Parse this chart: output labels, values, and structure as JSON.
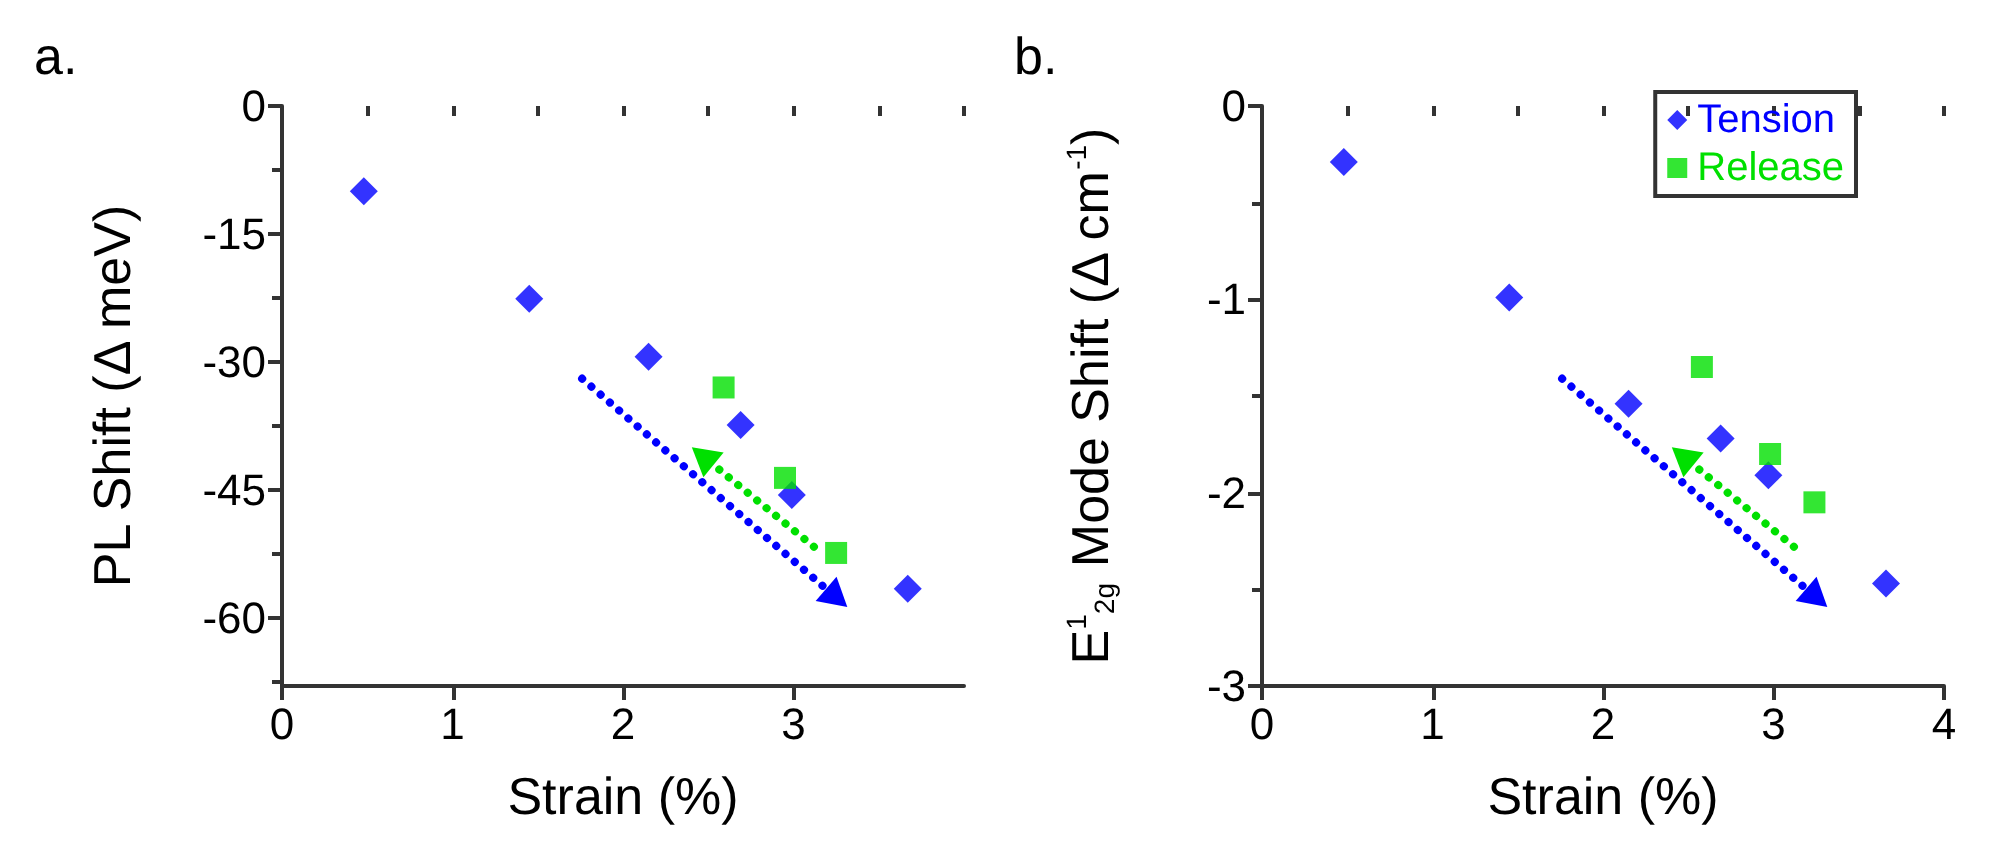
{
  "chart_data": [
    {
      "type": "scatter",
      "title": "a.",
      "xlabel": "Strain (%)",
      "ylabel": "PL Shift (Δ meV)",
      "xlim": [
        0,
        4
      ],
      "xticks": [
        0,
        1,
        2,
        3
      ],
      "ylim": [
        -68,
        0
      ],
      "yticks": [
        0,
        -15,
        -30,
        -45,
        -60
      ],
      "grid": false,
      "legend": false,
      "series": [
        {
          "color": "#0000ff",
          "marker": "diamond",
          "x": [
            0.48,
            1.45,
            2.15,
            2.69,
            2.99,
            3.67
          ],
          "values": [
            -10.0,
            -22.6,
            -29.4,
            -37.4,
            -45.6,
            -56.6
          ]
        },
        {
          "color": "#00e000",
          "marker": "square",
          "x": [
            2.59,
            2.95,
            3.25
          ],
          "values": [
            -33.0,
            -43.6,
            -52.4
          ]
        }
      ]
    },
    {
      "type": "scatter",
      "title": "b.",
      "xlabel": "Strain (%)",
      "ylabel": "E$^{1}$$_{2g}$ Mode Shift (Δ cm$^{-1}$)",
      "xlim": [
        0,
        4
      ],
      "xticks": [
        0,
        1,
        2,
        3,
        4
      ],
      "ylim": [
        -3,
        0
      ],
      "yticks": [
        0,
        -1,
        -2,
        -3
      ],
      "grid": false,
      "legend": "top right",
      "series": [
        {
          "name": "Tension",
          "color": "#0000ff",
          "marker": "diamond",
          "x": [
            0.48,
            1.45,
            2.15,
            2.69,
            2.97,
            3.66
          ],
          "values": [
            -0.29,
            -0.99,
            -1.54,
            -1.72,
            -1.91,
            -2.47
          ]
        },
        {
          "name": "Release",
          "color": "#00e000",
          "marker": "square",
          "x": [
            2.58,
            2.98,
            3.24
          ],
          "values": [
            -1.35,
            -1.8,
            -2.05
          ]
        }
      ]
    }
  ]
}
